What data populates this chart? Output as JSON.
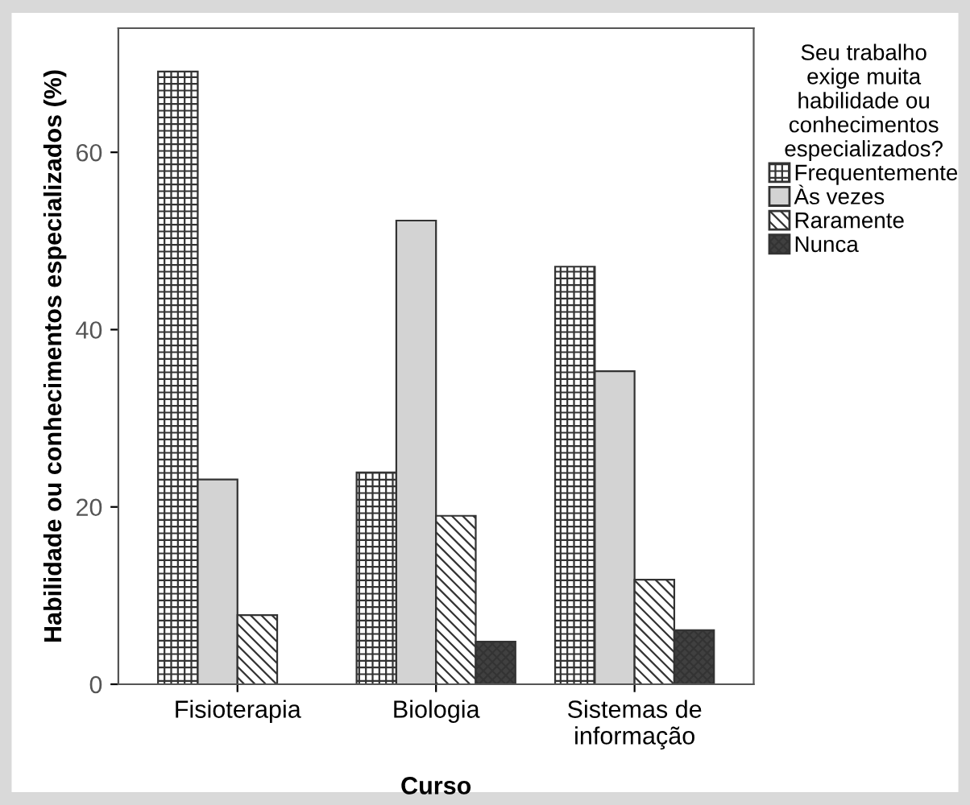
{
  "chart_data": {
    "type": "bar",
    "xlabel": "Curso",
    "ylabel": "Habilidade ou conhecimentos especializados (%)",
    "legend_title": "Seu trabalho\nexige muita\nhabilidade ou\nconhecimentos\nespecializados?",
    "categories": [
      "Fisioterapia",
      "Biologia",
      "Sistemas de\ninformação"
    ],
    "series": [
      {
        "name": "Frequentemente",
        "color": "#333333",
        "values": [
          69.1,
          23.9,
          47.1
        ]
      },
      {
        "name": "Às vezes",
        "color": "#d3d3d3",
        "values": [
          23.1,
          52.3,
          35.3
        ]
      },
      {
        "name": "Raramente",
        "color": "#333333",
        "values": [
          7.8,
          19.0,
          11.8
        ]
      },
      {
        "name": "Nunca",
        "color": "#404040",
        "values": [
          null,
          4.8,
          6.1
        ]
      }
    ],
    "ylim": [
      0,
      74
    ],
    "yticks": [
      0,
      20,
      40,
      60
    ],
    "grid": false,
    "legend": "right"
  }
}
